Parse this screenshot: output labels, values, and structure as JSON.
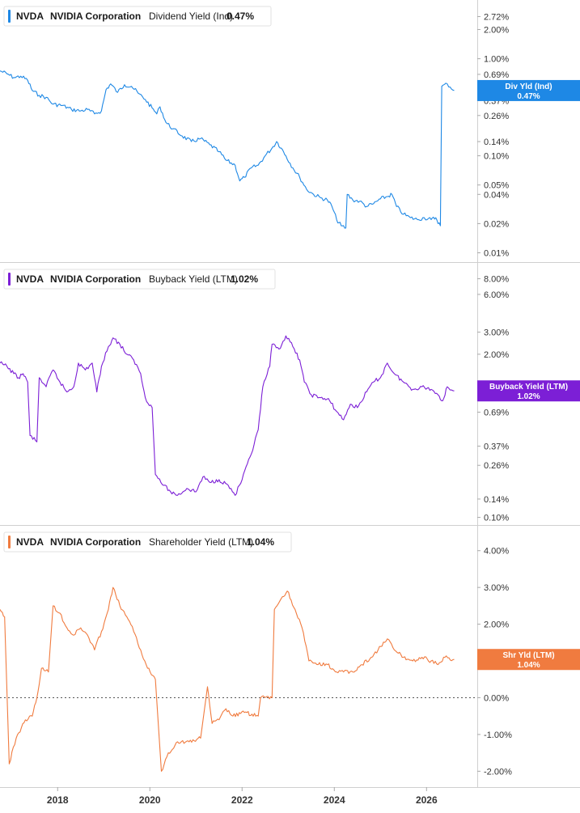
{
  "chart_data": [
    {
      "type": "line",
      "legend": {
        "ticker": "NVDA",
        "company": "NVIDIA Corporation",
        "metric": "Dividend Yield (Ind)",
        "value": "0.47%"
      },
      "color": "#1e88e5",
      "scale": "log",
      "ylim": [
        0.009,
        3.2
      ],
      "yticks": [
        {
          "value": 2.72,
          "label": "2.72%"
        },
        {
          "value": 2.0,
          "label": "2.00%"
        },
        {
          "value": 1.0,
          "label": "1.00%"
        },
        {
          "value": 0.69,
          "label": "0.69%"
        },
        {
          "value": 0.37,
          "label": "0.37%"
        },
        {
          "value": 0.26,
          "label": "0.26%"
        },
        {
          "value": 0.14,
          "label": "0.14%"
        },
        {
          "value": 0.1,
          "label": "0.10%"
        },
        {
          "value": 0.05,
          "label": "0.05%"
        },
        {
          "value": 0.04,
          "label": "0.04%"
        },
        {
          "value": 0.02,
          "label": "0.02%"
        },
        {
          "value": 0.01,
          "label": "0.01%"
        }
      ],
      "badge": {
        "label": "Div Yld (Ind)",
        "value": "0.47%",
        "at": 0.47
      },
      "points": [
        [
          2016.75,
          0.75
        ],
        [
          2016.9,
          0.7
        ],
        [
          2017.05,
          0.64
        ],
        [
          2017.2,
          0.66
        ],
        [
          2017.35,
          0.6
        ],
        [
          2017.45,
          0.47
        ],
        [
          2017.6,
          0.42
        ],
        [
          2017.75,
          0.4
        ],
        [
          2017.9,
          0.34
        ],
        [
          2018.1,
          0.33
        ],
        [
          2018.3,
          0.3
        ],
        [
          2018.5,
          0.29
        ],
        [
          2018.65,
          0.3
        ],
        [
          2018.8,
          0.27
        ],
        [
          2018.95,
          0.29
        ],
        [
          2019.05,
          0.48
        ],
        [
          2019.15,
          0.55
        ],
        [
          2019.3,
          0.45
        ],
        [
          2019.45,
          0.54
        ],
        [
          2019.6,
          0.52
        ],
        [
          2019.75,
          0.44
        ],
        [
          2019.9,
          0.38
        ],
        [
          2020.05,
          0.31
        ],
        [
          2020.15,
          0.27
        ],
        [
          2020.22,
          0.32
        ],
        [
          2020.35,
          0.22
        ],
        [
          2020.5,
          0.19
        ],
        [
          2020.7,
          0.16
        ],
        [
          2020.9,
          0.14
        ],
        [
          2021.1,
          0.15
        ],
        [
          2021.3,
          0.13
        ],
        [
          2021.5,
          0.11
        ],
        [
          2021.65,
          0.09
        ],
        [
          2021.85,
          0.08
        ],
        [
          2021.95,
          0.055
        ],
        [
          2022.05,
          0.06
        ],
        [
          2022.2,
          0.075
        ],
        [
          2022.35,
          0.08
        ],
        [
          2022.5,
          0.1
        ],
        [
          2022.65,
          0.12
        ],
        [
          2022.75,
          0.14
        ],
        [
          2022.85,
          0.12
        ],
        [
          2022.95,
          0.1
        ],
        [
          2023.1,
          0.075
        ],
        [
          2023.25,
          0.06
        ],
        [
          2023.4,
          0.045
        ],
        [
          2023.55,
          0.04
        ],
        [
          2023.7,
          0.037
        ],
        [
          2023.85,
          0.035
        ],
        [
          2023.95,
          0.03
        ],
        [
          2024.05,
          0.022
        ],
        [
          2024.15,
          0.019
        ],
        [
          2024.25,
          0.018
        ],
        [
          2024.28,
          0.04
        ],
        [
          2024.4,
          0.035
        ],
        [
          2024.55,
          0.034
        ],
        [
          2024.7,
          0.03
        ],
        [
          2024.85,
          0.032
        ],
        [
          2025.0,
          0.036
        ],
        [
          2025.15,
          0.038
        ],
        [
          2025.25,
          0.04
        ],
        [
          2025.35,
          0.03
        ],
        [
          2025.5,
          0.025
        ],
        [
          2025.65,
          0.023
        ],
        [
          2025.8,
          0.022
        ],
        [
          2025.95,
          0.023
        ],
        [
          2026.1,
          0.022
        ],
        [
          2026.2,
          0.023
        ],
        [
          2026.3,
          0.019
        ],
        [
          2026.33,
          0.52
        ],
        [
          2026.45,
          0.55
        ],
        [
          2026.6,
          0.47
        ]
      ]
    },
    {
      "type": "line",
      "legend": {
        "ticker": "NVDA",
        "company": "NVIDIA Corporation",
        "metric": "Buyback Yield (LTM)",
        "value": "1.02%"
      },
      "color": "#7c1fd6",
      "scale": "log",
      "ylim": [
        0.095,
        9.5
      ],
      "yticks": [
        {
          "value": 8.0,
          "label": "8.00%"
        },
        {
          "value": 6.0,
          "label": "6.00%"
        },
        {
          "value": 3.0,
          "label": "3.00%"
        },
        {
          "value": 2.0,
          "label": "2.00%"
        },
        {
          "value": 0.69,
          "label": "0.69%"
        },
        {
          "value": 0.37,
          "label": "0.37%"
        },
        {
          "value": 0.26,
          "label": "0.26%"
        },
        {
          "value": 0.14,
          "label": "0.14%"
        },
        {
          "value": 0.1,
          "label": "0.10%"
        }
      ],
      "badge": {
        "label": "Buyback Yield (LTM)",
        "value": "1.02%",
        "at": 1.02
      },
      "points": [
        [
          2016.75,
          1.7
        ],
        [
          2016.9,
          1.6
        ],
        [
          2017.05,
          1.4
        ],
        [
          2017.15,
          1.3
        ],
        [
          2017.25,
          1.4
        ],
        [
          2017.35,
          1.2
        ],
        [
          2017.4,
          0.45
        ],
        [
          2017.55,
          0.4
        ],
        [
          2017.6,
          1.3
        ],
        [
          2017.75,
          1.1
        ],
        [
          2017.9,
          1.5
        ],
        [
          2018.05,
          1.2
        ],
        [
          2018.2,
          1.0
        ],
        [
          2018.35,
          1.1
        ],
        [
          2018.45,
          1.7
        ],
        [
          2018.6,
          1.5
        ],
        [
          2018.75,
          1.7
        ],
        [
          2018.85,
          1.0
        ],
        [
          2018.95,
          1.6
        ],
        [
          2019.1,
          2.3
        ],
        [
          2019.2,
          2.7
        ],
        [
          2019.35,
          2.4
        ],
        [
          2019.5,
          2.0
        ],
        [
          2019.65,
          1.8
        ],
        [
          2019.8,
          1.4
        ],
        [
          2019.9,
          0.9
        ],
        [
          2020.05,
          0.75
        ],
        [
          2020.12,
          0.22
        ],
        [
          2020.3,
          0.18
        ],
        [
          2020.45,
          0.16
        ],
        [
          2020.6,
          0.15
        ],
        [
          2020.8,
          0.17
        ],
        [
          2021.0,
          0.16
        ],
        [
          2021.15,
          0.21
        ],
        [
          2021.3,
          0.19
        ],
        [
          2021.5,
          0.2
        ],
        [
          2021.7,
          0.18
        ],
        [
          2021.85,
          0.15
        ],
        [
          2022.0,
          0.2
        ],
        [
          2022.2,
          0.32
        ],
        [
          2022.35,
          0.5
        ],
        [
          2022.45,
          1.1
        ],
        [
          2022.6,
          1.6
        ],
        [
          2022.65,
          2.4
        ],
        [
          2022.8,
          2.2
        ],
        [
          2022.95,
          2.8
        ],
        [
          2023.1,
          2.3
        ],
        [
          2023.25,
          1.8
        ],
        [
          2023.35,
          1.2
        ],
        [
          2023.5,
          0.95
        ],
        [
          2023.7,
          0.9
        ],
        [
          2023.9,
          0.85
        ],
        [
          2024.05,
          0.7
        ],
        [
          2024.2,
          0.6
        ],
        [
          2024.35,
          0.8
        ],
        [
          2024.5,
          0.75
        ],
        [
          2024.7,
          1.0
        ],
        [
          2024.85,
          1.2
        ],
        [
          2025.0,
          1.3
        ],
        [
          2025.15,
          1.7
        ],
        [
          2025.3,
          1.4
        ],
        [
          2025.5,
          1.2
        ],
        [
          2025.7,
          1.05
        ],
        [
          2025.9,
          1.1
        ],
        [
          2026.1,
          1.05
        ],
        [
          2026.25,
          0.95
        ],
        [
          2026.35,
          0.85
        ],
        [
          2026.45,
          1.1
        ],
        [
          2026.6,
          1.02
        ]
      ]
    },
    {
      "type": "line",
      "legend": {
        "ticker": "NVDA",
        "company": "NVIDIA Corporation",
        "metric": "Shareholder Yield (LTM)",
        "value": "1.04%"
      },
      "color": "#f07b3f",
      "scale": "linear",
      "ylim": [
        -2.3,
        4.5
      ],
      "zero_line": true,
      "yticks": [
        {
          "value": 4.0,
          "label": "4.00%"
        },
        {
          "value": 3.0,
          "label": "3.00%"
        },
        {
          "value": 2.0,
          "label": "2.00%"
        },
        {
          "value": 1.0,
          "label": ""
        },
        {
          "value": 0.0,
          "label": "0.00%"
        },
        {
          "value": -1.0,
          "label": "-1.00%"
        },
        {
          "value": -2.0,
          "label": "-2.00%"
        }
      ],
      "badge": {
        "label": "Shr Yld (LTM)",
        "value": "1.04%",
        "at": 1.04
      },
      "points": [
        [
          2016.75,
          2.4
        ],
        [
          2016.85,
          2.2
        ],
        [
          2016.95,
          -1.8
        ],
        [
          2017.1,
          -1.1
        ],
        [
          2017.3,
          -0.6
        ],
        [
          2017.45,
          -0.5
        ],
        [
          2017.55,
          0.0
        ],
        [
          2017.65,
          0.8
        ],
        [
          2017.8,
          0.7
        ],
        [
          2017.9,
          2.5
        ],
        [
          2018.05,
          2.3
        ],
        [
          2018.2,
          1.9
        ],
        [
          2018.35,
          1.7
        ],
        [
          2018.5,
          1.9
        ],
        [
          2018.65,
          1.7
        ],
        [
          2018.8,
          1.3
        ],
        [
          2018.95,
          1.8
        ],
        [
          2019.1,
          2.4
        ],
        [
          2019.2,
          3.0
        ],
        [
          2019.35,
          2.5
        ],
        [
          2019.5,
          2.2
        ],
        [
          2019.65,
          1.8
        ],
        [
          2019.8,
          1.3
        ],
        [
          2019.95,
          0.8
        ],
        [
          2020.12,
          0.5
        ],
        [
          2020.25,
          -2.0
        ],
        [
          2020.4,
          -1.5
        ],
        [
          2020.6,
          -1.2
        ],
        [
          2020.85,
          -1.2
        ],
        [
          2021.1,
          -1.1
        ],
        [
          2021.25,
          0.3
        ],
        [
          2021.35,
          -0.7
        ],
        [
          2021.5,
          -0.6
        ],
        [
          2021.65,
          -0.3
        ],
        [
          2021.8,
          -0.5
        ],
        [
          2022.05,
          -0.4
        ],
        [
          2022.35,
          -0.5
        ],
        [
          2022.4,
          0.0
        ],
        [
          2022.65,
          0.0
        ],
        [
          2022.7,
          2.4
        ],
        [
          2022.85,
          2.7
        ],
        [
          2022.98,
          2.9
        ],
        [
          2023.15,
          2.4
        ],
        [
          2023.3,
          1.9
        ],
        [
          2023.45,
          1.0
        ],
        [
          2023.65,
          0.9
        ],
        [
          2023.85,
          0.9
        ],
        [
          2024.05,
          0.7
        ],
        [
          2024.2,
          0.7
        ],
        [
          2024.4,
          0.7
        ],
        [
          2024.6,
          0.9
        ],
        [
          2024.8,
          1.1
        ],
        [
          2024.95,
          1.3
        ],
        [
          2025.15,
          1.6
        ],
        [
          2025.3,
          1.3
        ],
        [
          2025.5,
          1.1
        ],
        [
          2025.7,
          1.0
        ],
        [
          2025.9,
          1.1
        ],
        [
          2026.1,
          1.0
        ],
        [
          2026.25,
          0.9
        ],
        [
          2026.4,
          1.1
        ],
        [
          2026.6,
          1.04
        ]
      ]
    }
  ],
  "x_axis": {
    "range": [
      2016.75,
      2027.1
    ],
    "ticks": [
      {
        "value": 2018,
        "label": "2018"
      },
      {
        "value": 2020,
        "label": "2020"
      },
      {
        "value": 2022,
        "label": "2022"
      },
      {
        "value": 2024,
        "label": "2024"
      },
      {
        "value": 2026,
        "label": "2026"
      }
    ]
  }
}
